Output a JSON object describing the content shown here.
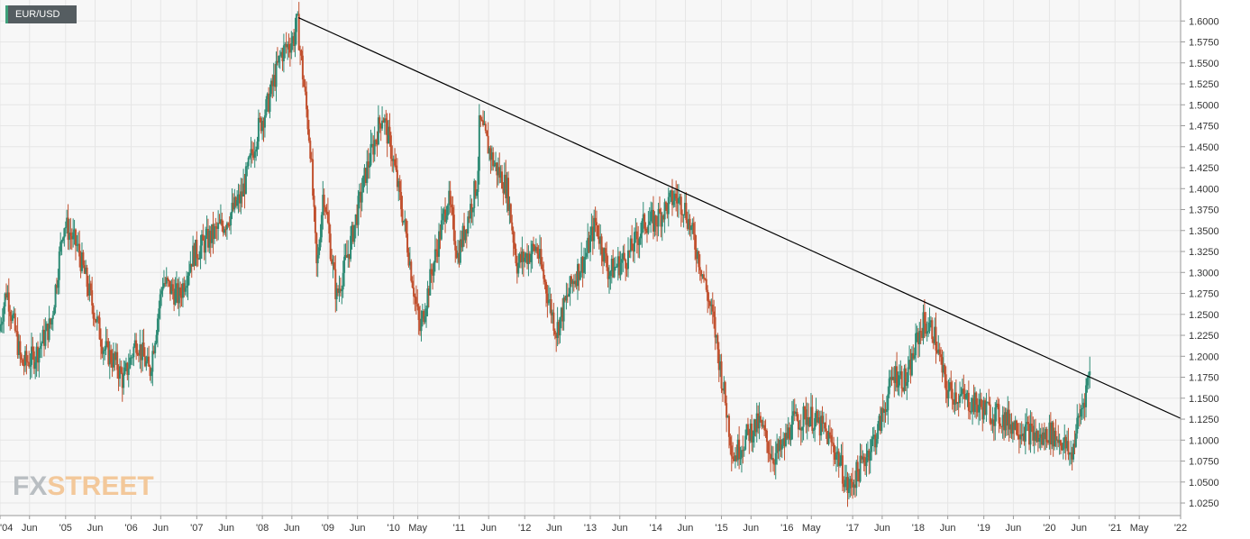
{
  "symbol_label": "EUR/USD",
  "watermark": {
    "part1": "FX",
    "part2": "STREET"
  },
  "colors": {
    "up": "#2e8b75",
    "down": "#c1502e",
    "trendline": "#000000",
    "grid": "#e6e6e6",
    "plot_bg": "#f7f7f7"
  },
  "chart_data": {
    "type": "candlestick",
    "title": "",
    "xlabel": "",
    "ylabel": "",
    "ylim": [
      1.01,
      1.625
    ],
    "xlim": [
      2004.0,
      2022.0
    ],
    "y_ticks": [
      "1.0250",
      "1.0500",
      "1.0750",
      "1.1000",
      "1.1250",
      "1.1500",
      "1.1750",
      "1.2000",
      "1.2250",
      "1.2500",
      "1.2750",
      "1.3000",
      "1.3250",
      "1.3500",
      "1.3750",
      "1.4000",
      "1.4250",
      "1.4500",
      "1.4750",
      "1.5000",
      "1.5250",
      "1.5500",
      "1.5750",
      "1.6000"
    ],
    "x_ticks": [
      {
        "label": "'04",
        "x": 2004.0
      },
      {
        "label": "Jun",
        "x": 2004.45
      },
      {
        "label": "'05",
        "x": 2005.0
      },
      {
        "label": "Jun",
        "x": 2005.45
      },
      {
        "label": "'06",
        "x": 2006.0
      },
      {
        "label": "Jun",
        "x": 2006.45
      },
      {
        "label": "'07",
        "x": 2007.0
      },
      {
        "label": "Jun",
        "x": 2007.45
      },
      {
        "label": "'08",
        "x": 2008.0
      },
      {
        "label": "Jun",
        "x": 2008.45
      },
      {
        "label": "'09",
        "x": 2009.0
      },
      {
        "label": "Jun",
        "x": 2009.45
      },
      {
        "label": "'10",
        "x": 2010.0
      },
      {
        "label": "May",
        "x": 2010.37
      },
      {
        "label": "'11",
        "x": 2011.0
      },
      {
        "label": "Jun",
        "x": 2011.45
      },
      {
        "label": "'12",
        "x": 2012.0
      },
      {
        "label": "Jun",
        "x": 2012.45
      },
      {
        "label": "'13",
        "x": 2013.0
      },
      {
        "label": "Jun",
        "x": 2013.45
      },
      {
        "label": "'14",
        "x": 2014.0
      },
      {
        "label": "Jun",
        "x": 2014.45
      },
      {
        "label": "'15",
        "x": 2015.0
      },
      {
        "label": "Jun",
        "x": 2015.45
      },
      {
        "label": "'16",
        "x": 2016.0
      },
      {
        "label": "May",
        "x": 2016.37
      },
      {
        "label": "'17",
        "x": 2017.0
      },
      {
        "label": "Jun",
        "x": 2017.45
      },
      {
        "label": "'18",
        "x": 2018.0
      },
      {
        "label": "Jun",
        "x": 2018.45
      },
      {
        "label": "'19",
        "x": 2019.0
      },
      {
        "label": "Jun",
        "x": 2019.45
      },
      {
        "label": "'20",
        "x": 2020.0
      },
      {
        "label": "Jun",
        "x": 2020.45
      },
      {
        "label": "'21",
        "x": 2021.0
      },
      {
        "label": "May",
        "x": 2021.37
      },
      {
        "label": "'22",
        "x": 2022.0
      }
    ],
    "price_path": [
      [
        2004.0,
        1.23
      ],
      [
        2004.12,
        1.28
      ],
      [
        2004.35,
        1.19
      ],
      [
        2004.55,
        1.2
      ],
      [
        2004.8,
        1.24
      ],
      [
        2004.99,
        1.36
      ],
      [
        2005.2,
        1.33
      ],
      [
        2005.4,
        1.27
      ],
      [
        2005.6,
        1.21
      ],
      [
        2005.8,
        1.19
      ],
      [
        2005.9,
        1.17
      ],
      [
        2006.1,
        1.22
      ],
      [
        2006.3,
        1.18
      ],
      [
        2006.5,
        1.29
      ],
      [
        2006.75,
        1.27
      ],
      [
        2006.95,
        1.32
      ],
      [
        2007.2,
        1.34
      ],
      [
        2007.45,
        1.36
      ],
      [
        2007.7,
        1.39
      ],
      [
        2007.95,
        1.47
      ],
      [
        2008.1,
        1.5
      ],
      [
        2008.3,
        1.56
      ],
      [
        2008.5,
        1.58
      ],
      [
        2008.55,
        1.6
      ],
      [
        2008.75,
        1.45
      ],
      [
        2008.85,
        1.3
      ],
      [
        2008.95,
        1.4
      ],
      [
        2009.15,
        1.27
      ],
      [
        2009.35,
        1.33
      ],
      [
        2009.6,
        1.42
      ],
      [
        2009.85,
        1.49
      ],
      [
        2010.0,
        1.44
      ],
      [
        2010.2,
        1.35
      ],
      [
        2010.42,
        1.23
      ],
      [
        2010.6,
        1.3
      ],
      [
        2010.85,
        1.39
      ],
      [
        2011.0,
        1.32
      ],
      [
        2011.3,
        1.41
      ],
      [
        2011.33,
        1.48
      ],
      [
        2011.55,
        1.43
      ],
      [
        2011.75,
        1.4
      ],
      [
        2011.9,
        1.31
      ],
      [
        2012.2,
        1.33
      ],
      [
        2012.5,
        1.23
      ],
      [
        2012.75,
        1.29
      ],
      [
        2012.95,
        1.32
      ],
      [
        2013.1,
        1.36
      ],
      [
        2013.3,
        1.3
      ],
      [
        2013.6,
        1.32
      ],
      [
        2013.85,
        1.36
      ],
      [
        2014.0,
        1.36
      ],
      [
        2014.3,
        1.39
      ],
      [
        2014.45,
        1.38
      ],
      [
        2014.7,
        1.31
      ],
      [
        2014.9,
        1.24
      ],
      [
        2015.05,
        1.16
      ],
      [
        2015.2,
        1.08
      ],
      [
        2015.45,
        1.11
      ],
      [
        2015.6,
        1.12
      ],
      [
        2015.8,
        1.08
      ],
      [
        2015.95,
        1.09
      ],
      [
        2016.1,
        1.12
      ],
      [
        2016.35,
        1.13
      ],
      [
        2016.6,
        1.11
      ],
      [
        2016.8,
        1.08
      ],
      [
        2016.95,
        1.04
      ],
      [
        2017.15,
        1.07
      ],
      [
        2017.4,
        1.11
      ],
      [
        2017.65,
        1.18
      ],
      [
        2017.85,
        1.17
      ],
      [
        2018.0,
        1.22
      ],
      [
        2018.1,
        1.24
      ],
      [
        2018.25,
        1.23
      ],
      [
        2018.45,
        1.16
      ],
      [
        2018.7,
        1.15
      ],
      [
        2018.95,
        1.14
      ],
      [
        2019.2,
        1.13
      ],
      [
        2019.45,
        1.12
      ],
      [
        2019.7,
        1.11
      ],
      [
        2019.9,
        1.1
      ],
      [
        2020.0,
        1.11
      ],
      [
        2020.2,
        1.1
      ],
      [
        2020.35,
        1.08
      ],
      [
        2020.45,
        1.12
      ],
      [
        2020.55,
        1.15
      ],
      [
        2020.62,
        1.18
      ]
    ],
    "trendline": {
      "from": [
        2008.55,
        1.604
      ],
      "to": [
        2022.0,
        1.126
      ]
    }
  }
}
